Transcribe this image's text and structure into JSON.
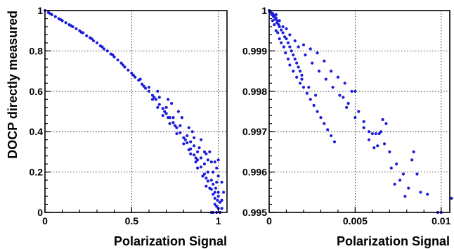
{
  "chart_data": [
    {
      "type": "scatter",
      "xlabel": "Polarization Signal",
      "ylabel": "DOCP directly measured",
      "xlim": [
        0,
        1.05
      ],
      "ylim": [
        0,
        1
      ],
      "x_ticks": [
        0,
        0.5,
        1
      ],
      "x_tick_labels": [
        "0",
        "0.5",
        "1"
      ],
      "y_ticks": [
        0,
        0.2,
        0.4,
        0.6,
        0.8,
        1
      ],
      "y_tick_labels": [
        "0",
        "0.2",
        "0.4",
        "0.6",
        "0.8",
        "1"
      ],
      "grid": true,
      "marker_color": "#1c1cdc",
      "series": [
        {
          "points": [
            [
              0.0,
              1.0
            ],
            [
              0.02,
              0.99
            ],
            [
              0.04,
              0.98
            ],
            [
              0.06,
              0.97
            ],
            [
              0.08,
              0.96
            ],
            [
              0.1,
              0.95
            ],
            [
              0.12,
              0.94
            ],
            [
              0.14,
              0.93
            ],
            [
              0.16,
              0.92
            ],
            [
              0.18,
              0.91
            ],
            [
              0.2,
              0.9
            ],
            [
              0.22,
              0.89
            ],
            [
              0.24,
              0.875
            ],
            [
              0.26,
              0.865
            ],
            [
              0.28,
              0.85
            ],
            [
              0.3,
              0.84
            ],
            [
              0.32,
              0.825
            ],
            [
              0.34,
              0.81
            ],
            [
              0.36,
              0.8
            ],
            [
              0.38,
              0.785
            ],
            [
              0.4,
              0.77
            ],
            [
              0.42,
              0.755
            ],
            [
              0.44,
              0.74
            ],
            [
              0.46,
              0.72
            ],
            [
              0.48,
              0.705
            ],
            [
              0.5,
              0.69
            ],
            [
              0.52,
              0.67
            ],
            [
              0.54,
              0.655
            ],
            [
              0.56,
              0.635
            ],
            [
              0.58,
              0.615
            ],
            [
              0.6,
              0.6
            ],
            [
              0.62,
              0.58
            ],
            [
              0.64,
              0.56
            ],
            [
              0.66,
              0.535
            ],
            [
              0.68,
              0.515
            ],
            [
              0.7,
              0.49
            ],
            [
              0.72,
              0.47
            ],
            [
              0.74,
              0.445
            ],
            [
              0.76,
              0.42
            ],
            [
              0.78,
              0.395
            ],
            [
              0.8,
              0.37
            ],
            [
              0.82,
              0.345
            ],
            [
              0.84,
              0.315
            ],
            [
              0.86,
              0.285
            ],
            [
              0.88,
              0.26
            ],
            [
              0.9,
              0.225
            ],
            [
              0.92,
              0.19
            ],
            [
              0.94,
              0.155
            ],
            [
              0.96,
              0.115
            ],
            [
              0.98,
              0.07
            ],
            [
              1.0,
              0.02
            ],
            [
              0.03,
              0.985
            ],
            [
              0.09,
              0.955
            ],
            [
              0.15,
              0.925
            ],
            [
              0.21,
              0.892
            ],
            [
              0.27,
              0.86
            ],
            [
              0.33,
              0.82
            ],
            [
              0.39,
              0.78
            ],
            [
              0.45,
              0.73
            ],
            [
              0.51,
              0.68
            ],
            [
              0.57,
              0.625
            ],
            [
              0.63,
              0.57
            ],
            [
              0.69,
              0.5
            ],
            [
              0.75,
              0.43
            ],
            [
              0.81,
              0.36
            ],
            [
              0.87,
              0.27
            ],
            [
              0.93,
              0.17
            ],
            [
              0.97,
              0.09
            ],
            [
              0.66,
              0.57
            ],
            [
              0.7,
              0.52
            ],
            [
              0.74,
              0.47
            ],
            [
              0.78,
              0.43
            ],
            [
              0.82,
              0.38
            ],
            [
              0.84,
              0.35
            ],
            [
              0.86,
              0.33
            ],
            [
              0.88,
              0.3
            ],
            [
              0.9,
              0.27
            ],
            [
              0.92,
              0.24
            ],
            [
              0.94,
              0.2
            ],
            [
              0.96,
              0.16
            ],
            [
              0.62,
              0.56
            ],
            [
              0.68,
              0.48
            ],
            [
              0.72,
              0.44
            ],
            [
              0.76,
              0.39
            ],
            [
              0.8,
              0.34
            ],
            [
              0.84,
              0.29
            ],
            [
              0.88,
              0.22
            ],
            [
              0.91,
              0.18
            ],
            [
              0.95,
              0.12
            ],
            [
              0.98,
              0.04
            ],
            [
              0.97,
              0.0
            ],
            [
              0.99,
              0.0
            ],
            [
              1.0,
              0.08
            ],
            [
              1.01,
              0.05
            ],
            [
              0.99,
              0.15
            ],
            [
              0.985,
              0.12
            ],
            [
              1.0,
              0.1
            ],
            [
              0.95,
              0.3
            ],
            [
              0.96,
              0.25
            ],
            [
              0.97,
              0.2
            ],
            [
              0.93,
              0.29
            ],
            [
              0.94,
              0.26
            ],
            [
              0.92,
              0.3
            ],
            [
              1.02,
              0.06
            ],
            [
              1.03,
              0.1
            ],
            [
              1.02,
              0.15
            ],
            [
              1.01,
              0.0
            ],
            [
              0.98,
              0.25
            ],
            [
              0.96,
              0.0
            ],
            [
              1.0,
              0.18
            ],
            [
              0.89,
              0.32
            ],
            [
              0.9,
              0.36
            ],
            [
              0.85,
              0.4
            ],
            [
              0.86,
              0.37
            ],
            [
              0.83,
              0.42
            ],
            [
              0.79,
              0.47
            ],
            [
              0.77,
              0.5
            ],
            [
              0.73,
              0.54
            ],
            [
              0.71,
              0.56
            ],
            [
              0.65,
              0.6
            ],
            [
              0.6,
              0.62
            ],
            [
              0.55,
              0.66
            ],
            [
              0.65,
              0.52
            ],
            [
              0.71,
              0.47
            ],
            [
              0.83,
              0.31
            ],
            [
              0.87,
              0.25
            ],
            [
              0.93,
              0.13
            ],
            [
              0.99,
              0.03
            ],
            [
              0.97,
              0.14
            ],
            [
              0.99,
              0.22
            ],
            [
              1.0,
              0.26
            ],
            [
              0.98,
              0.1
            ],
            [
              1.02,
              0.02
            ],
            [
              0.995,
              0.06
            ]
          ]
        }
      ]
    },
    {
      "type": "scatter",
      "xlabel": "Polarization Signal",
      "ylabel": "",
      "xlim": [
        0,
        0.0105
      ],
      "ylim": [
        0.995,
        1
      ],
      "x_ticks": [
        0,
        0.005,
        0.01
      ],
      "x_tick_labels": [
        "0",
        "0.005",
        "0.01"
      ],
      "y_ticks": [
        0.995,
        0.996,
        0.997,
        0.998,
        0.999,
        1
      ],
      "y_tick_labels": [
        "0.995",
        "0.996",
        "0.997",
        "0.998",
        "0.999",
        "1"
      ],
      "grid": true,
      "marker_color": "#1c1cdc",
      "series": [
        {
          "points": [
            [
              0.0,
              1.0
            ],
            [
              5e-05,
              0.99998
            ],
            [
              0.0001,
              0.99995
            ],
            [
              0.00015,
              0.9999
            ],
            [
              0.0002,
              0.99993
            ],
            [
              0.00025,
              0.99985
            ],
            [
              0.0003,
              0.99988
            ],
            [
              0.00035,
              0.99978
            ],
            [
              0.0004,
              0.99982
            ],
            [
              0.00045,
              0.9997
            ],
            [
              0.0005,
              0.99975
            ],
            [
              0.00055,
              0.99965
            ],
            [
              0.0006,
              0.9996
            ],
            [
              0.0007,
              0.99952
            ],
            [
              0.0008,
              0.99945
            ],
            [
              0.0009,
              0.99935
            ],
            [
              0.001,
              0.9993
            ],
            [
              0.0011,
              0.9992
            ],
            [
              0.0012,
              0.9991
            ],
            [
              0.0013,
              0.999
            ],
            [
              0.0014,
              0.9989
            ],
            [
              0.0015,
              0.9988
            ],
            [
              0.0016,
              0.9987
            ],
            [
              0.0017,
              0.9986
            ],
            [
              0.0018,
              0.9985
            ],
            [
              0.0019,
              0.9984
            ],
            [
              0.0002,
              0.99975
            ],
            [
              0.0003,
              0.99965
            ],
            [
              0.0004,
              0.9995
            ],
            [
              0.0005,
              0.99945
            ],
            [
              0.0006,
              0.9993
            ],
            [
              0.0007,
              0.9992
            ],
            [
              0.00085,
              0.9991
            ],
            [
              0.00095,
              0.99895
            ],
            [
              0.0011,
              0.9988
            ],
            [
              0.0012,
              0.99865
            ],
            [
              0.0014,
              0.9985
            ],
            [
              0.0016,
              0.99835
            ],
            [
              0.0018,
              0.9982
            ],
            [
              0.002,
              0.9981
            ],
            [
              0.0022,
              0.99795
            ],
            [
              0.0024,
              0.9978
            ],
            [
              0.0026,
              0.99765
            ],
            [
              0.0028,
              0.9975
            ],
            [
              0.003,
              0.99735
            ],
            [
              0.0032,
              0.9972
            ],
            [
              0.0034,
              0.99705
            ],
            [
              0.0036,
              0.9969
            ],
            [
              0.0038,
              0.99675
            ],
            [
              0.002,
              0.99915
            ],
            [
              0.0024,
              0.99905
            ],
            [
              0.0028,
              0.99895
            ],
            [
              0.0032,
              0.99875
            ],
            [
              0.0036,
              0.9985
            ],
            [
              0.004,
              0.99835
            ],
            [
              0.0044,
              0.9982
            ],
            [
              0.0048,
              0.998
            ],
            [
              0.005,
              0.998
            ],
            [
              0.0043,
              0.99785
            ],
            [
              0.0046,
              0.9977
            ],
            [
              0.0052,
              0.9975
            ],
            [
              0.0055,
              0.99725
            ],
            [
              0.0058,
              0.997
            ],
            [
              0.006,
              0.99695
            ],
            [
              0.0062,
              0.99695
            ],
            [
              0.0064,
              0.99695
            ],
            [
              0.0066,
              0.9973
            ],
            [
              0.0068,
              0.9972
            ],
            [
              0.0065,
              0.997
            ],
            [
              0.0063,
              0.99665
            ],
            [
              0.0061,
              0.9966
            ],
            [
              0.0067,
              0.9967
            ],
            [
              0.007,
              0.9965
            ],
            [
              0.0074,
              0.9962
            ],
            [
              0.0078,
              0.99595
            ],
            [
              0.0084,
              0.9965
            ],
            [
              0.0083,
              0.9963
            ],
            [
              0.0086,
              0.99595
            ],
            [
              0.0088,
              0.9955
            ],
            [
              0.0092,
              0.99545
            ],
            [
              0.0098,
              0.995
            ],
            [
              0.01,
              0.995
            ],
            [
              0.0106,
              0.99535
            ],
            [
              0.0004,
              0.9999
            ],
            [
              0.0006,
              0.99975
            ],
            [
              0.0008,
              0.9996
            ],
            [
              0.001,
              0.99955
            ],
            [
              0.0012,
              0.9994
            ],
            [
              0.0015,
              0.99925
            ],
            [
              0.0017,
              0.9991
            ],
            [
              0.0021,
              0.9989
            ],
            [
              0.0025,
              0.9987
            ],
            [
              0.0029,
              0.9985
            ],
            [
              0.0033,
              0.9983
            ],
            [
              0.0037,
              0.9981
            ],
            [
              0.0041,
              0.9979
            ],
            [
              0.0045,
              0.9976
            ],
            [
              0.005,
              0.99735
            ],
            [
              0.0055,
              0.9971
            ],
            [
              0.0058,
              0.9968
            ],
            [
              0.0071,
              0.9961
            ],
            [
              0.0076,
              0.9958
            ],
            [
              0.0081,
              0.9956
            ],
            [
              0.0073,
              0.9957
            ],
            [
              0.0079,
              0.9954
            ],
            [
              0.0019,
              0.9983
            ],
            [
              0.0023,
              0.9981
            ],
            [
              0.0027,
              0.9979
            ]
          ]
        }
      ]
    }
  ]
}
